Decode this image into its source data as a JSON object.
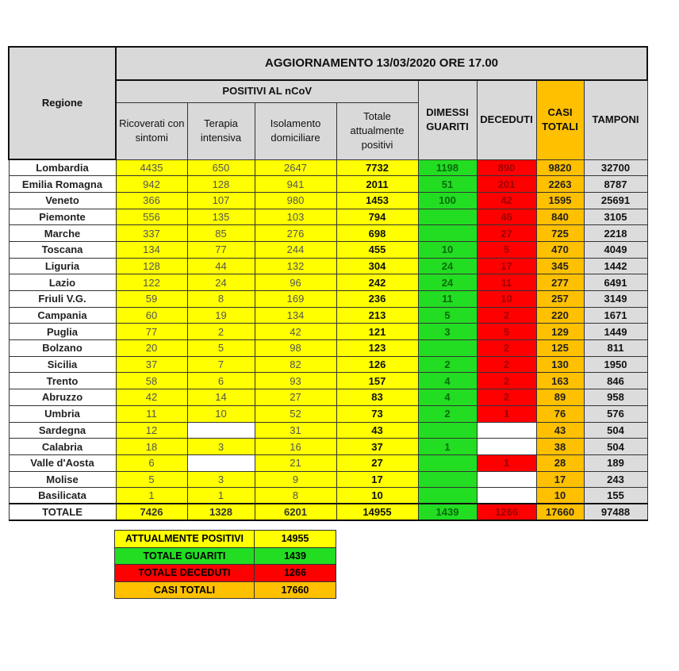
{
  "header": {
    "title": "AGGIORNAMENTO 13/03/2020 ORE 17.00",
    "regione": "Regione",
    "positivi_group": "POSITIVI AL nCoV",
    "columns": [
      "Ricoverati con sintomi",
      "Terapia intensiva",
      "Isolamento domiciliare",
      "Totale attualmente positivi",
      "DIMESSI GUARITI",
      "DECEDUTI",
      "CASI TOTALI",
      "TAMPONI"
    ]
  },
  "colors": {
    "yellow": "#ffff00",
    "green": "#22dd22",
    "red": "#ff0000",
    "orange": "#ffc000",
    "grey": "#d9d9d9"
  },
  "rows": [
    [
      "Lombardia",
      "4435",
      "650",
      "2647",
      "7732",
      "1198",
      "890",
      "9820",
      "32700"
    ],
    [
      "Emilia Romagna",
      "942",
      "128",
      "941",
      "2011",
      "51",
      "201",
      "2263",
      "8787"
    ],
    [
      "Veneto",
      "366",
      "107",
      "980",
      "1453",
      "100",
      "42",
      "1595",
      "25691"
    ],
    [
      "Piemonte",
      "556",
      "135",
      "103",
      "794",
      "",
      "46",
      "840",
      "3105"
    ],
    [
      "Marche",
      "337",
      "85",
      "276",
      "698",
      "",
      "27",
      "725",
      "2218"
    ],
    [
      "Toscana",
      "134",
      "77",
      "244",
      "455",
      "10",
      "5",
      "470",
      "4049"
    ],
    [
      "Liguria",
      "128",
      "44",
      "132",
      "304",
      "24",
      "17",
      "345",
      "1442"
    ],
    [
      "Lazio",
      "122",
      "24",
      "96",
      "242",
      "24",
      "11",
      "277",
      "6491"
    ],
    [
      "Friuli V.G.",
      "59",
      "8",
      "169",
      "236",
      "11",
      "10",
      "257",
      "3149"
    ],
    [
      "Campania",
      "60",
      "19",
      "134",
      "213",
      "5",
      "2",
      "220",
      "1671"
    ],
    [
      "Puglia",
      "77",
      "2",
      "42",
      "121",
      "3",
      "5",
      "129",
      "1449"
    ],
    [
      "Bolzano",
      "20",
      "5",
      "98",
      "123",
      "",
      "2",
      "125",
      "811"
    ],
    [
      "Sicilia",
      "37",
      "7",
      "82",
      "126",
      "2",
      "2",
      "130",
      "1950"
    ],
    [
      "Trento",
      "58",
      "6",
      "93",
      "157",
      "4",
      "2",
      "163",
      "846"
    ],
    [
      "Abruzzo",
      "42",
      "14",
      "27",
      "83",
      "4",
      "2",
      "89",
      "958"
    ],
    [
      "Umbria",
      "11",
      "10",
      "52",
      "73",
      "2",
      "1",
      "76",
      "576"
    ],
    [
      "Sardegna",
      "12",
      "",
      "31",
      "43",
      "",
      "",
      "43",
      "504"
    ],
    [
      "Calabria",
      "18",
      "3",
      "16",
      "37",
      "1",
      "",
      "38",
      "504"
    ],
    [
      "Valle d'Aosta",
      "6",
      "",
      "21",
      "27",
      "",
      "1",
      "28",
      "189"
    ],
    [
      "Molise",
      "5",
      "3",
      "9",
      "17",
      "",
      "",
      "17",
      "243"
    ],
    [
      "Basilicata",
      "1",
      "1",
      "8",
      "10",
      "",
      "",
      "10",
      "155"
    ]
  ],
  "totals": [
    "TOTALE",
    "7426",
    "1328",
    "6201",
    "14955",
    "1439",
    "1266",
    "17660",
    "97488"
  ],
  "summary": [
    {
      "label": "ATTUALMENTE POSITIVI",
      "value": "14955",
      "color": "#ffff00"
    },
    {
      "label": "TOTALE GUARITI",
      "value": "1439",
      "color": "#22dd22"
    },
    {
      "label": "TOTALE DECEDUTI",
      "value": "1266",
      "color": "#ff0000"
    },
    {
      "label": "CASI TOTALI",
      "value": "17660",
      "color": "#ffc000"
    }
  ]
}
